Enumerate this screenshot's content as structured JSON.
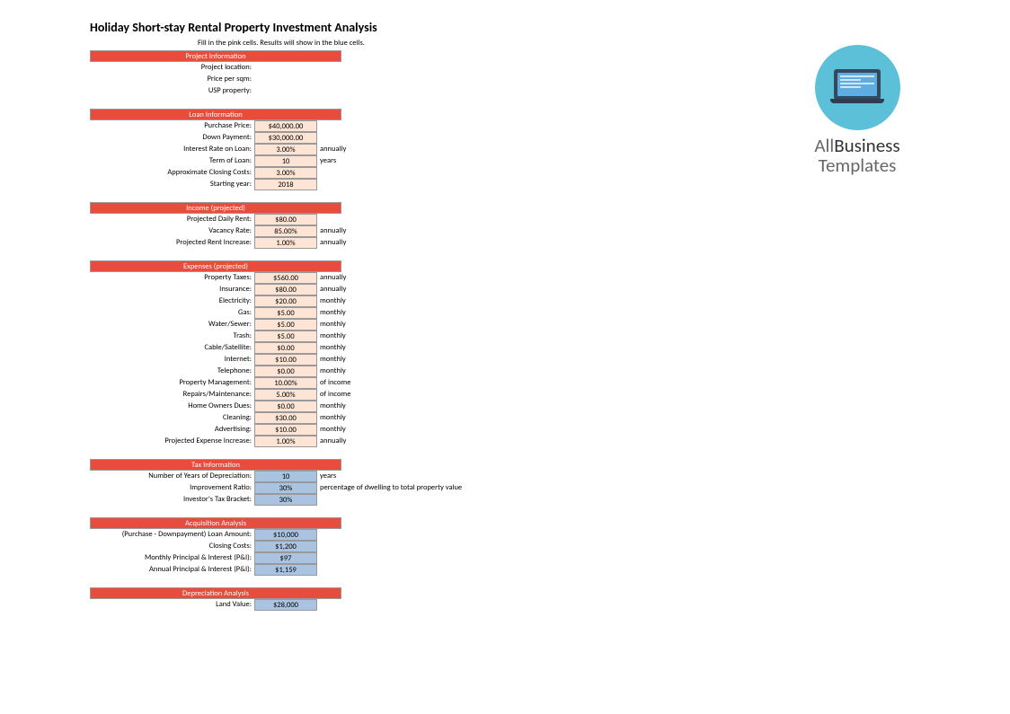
{
  "title": "Holiday Short-stay Rental Property Investment Analysis",
  "subtitle": "Fill in the pink cells. Results will show in the blue cells.",
  "logo": {
    "line1_a": "All",
    "line1_b": "Business",
    "line2": "Templates"
  },
  "colors": {
    "header_bg": "#e74c3c",
    "header_text": "#ffffff",
    "pink_cell": "#fde4d4",
    "blue_cell": "#a9c3e0",
    "border": "#999999"
  },
  "sections": [
    {
      "header": "Project Information",
      "rows": [
        {
          "label": "Project location:",
          "value": "",
          "cell": "none",
          "unit": ""
        },
        {
          "label": "Price per sqm:",
          "value": "",
          "cell": "none",
          "unit": ""
        },
        {
          "label": "USP property:",
          "value": "",
          "cell": "none",
          "unit": ""
        }
      ]
    },
    {
      "header": "Loan Information",
      "rows": [
        {
          "label": "Purchase Price:",
          "value": "$40,000.00",
          "cell": "pink",
          "unit": ""
        },
        {
          "label": "Down Payment:",
          "value": "$30,000.00",
          "cell": "pink",
          "unit": ""
        },
        {
          "label": "Interest Rate on Loan:",
          "value": "3.00%",
          "cell": "pink",
          "unit": "annually"
        },
        {
          "label": "Term of Loan:",
          "value": "10",
          "cell": "pink",
          "unit": "years"
        },
        {
          "label": "Approximate Closing Costs:",
          "value": "3.00%",
          "cell": "pink",
          "unit": ""
        },
        {
          "label": "Starting year:",
          "value": "2018",
          "cell": "pink",
          "unit": ""
        }
      ]
    },
    {
      "header": "Income (projected)",
      "rows": [
        {
          "label": "Projected Daily Rent:",
          "value": "$80.00",
          "cell": "pink",
          "unit": ""
        },
        {
          "label": "Vacancy Rate:",
          "value": "85.00%",
          "cell": "pink",
          "unit": "annually"
        },
        {
          "label": "Projected Rent Increase:",
          "value": "1.00%",
          "cell": "pink",
          "unit": "annually"
        }
      ]
    },
    {
      "header": "Expenses (projected)",
      "rows": [
        {
          "label": "Property Taxes:",
          "value": "$560.00",
          "cell": "pink",
          "unit": "annually"
        },
        {
          "label": "Insurance:",
          "value": "$80.00",
          "cell": "pink",
          "unit": "annually"
        },
        {
          "label": "Electricity:",
          "value": "$20.00",
          "cell": "pink",
          "unit": "monthly"
        },
        {
          "label": "Gas:",
          "value": "$5.00",
          "cell": "pink",
          "unit": "monthly"
        },
        {
          "label": "Water/Sewer:",
          "value": "$5.00",
          "cell": "pink",
          "unit": "monthly"
        },
        {
          "label": "Trash:",
          "value": "$5.00",
          "cell": "pink",
          "unit": "monthly"
        },
        {
          "label": "Cable/Satellite:",
          "value": "$0.00",
          "cell": "pink",
          "unit": "monthly"
        },
        {
          "label": "Internet:",
          "value": "$10.00",
          "cell": "pink",
          "unit": "monthly"
        },
        {
          "label": "Telephone:",
          "value": "$0.00",
          "cell": "pink",
          "unit": "monthly"
        },
        {
          "label": "Property Management:",
          "value": "10.00%",
          "cell": "pink",
          "unit": "of income"
        },
        {
          "label": "Repairs/Maintenance:",
          "value": "5.00%",
          "cell": "pink",
          "unit": "of income"
        },
        {
          "label": "Home Owners Dues:",
          "value": "$0.00",
          "cell": "pink",
          "unit": "monthly"
        },
        {
          "label": "Cleaning:",
          "value": "$30.00",
          "cell": "pink",
          "unit": "monthly"
        },
        {
          "label": "Advertising:",
          "value": "$10.00",
          "cell": "pink",
          "unit": "monthly"
        },
        {
          "label": "Projected Expense Increase:",
          "value": "1.00%",
          "cell": "pink",
          "unit": "annually"
        }
      ]
    },
    {
      "header": "Tax Information",
      "rows": [
        {
          "label": "Number of Years of Depreciation:",
          "value": "10",
          "cell": "blue",
          "unit": "years"
        },
        {
          "label": "Improvement Ratio:",
          "value": "30%",
          "cell": "blue",
          "unit": "percentage of dwelling to total property value"
        },
        {
          "label": "Investor's Tax Bracket:",
          "value": "30%",
          "cell": "blue",
          "unit": ""
        }
      ]
    },
    {
      "header": "Acquisition Analysis",
      "rows": [
        {
          "label": "(Purchase - Downpayment) Loan Amount:",
          "value": "$10,000",
          "cell": "blue",
          "unit": ""
        },
        {
          "label": "Closing Costs:",
          "value": "$1,200",
          "cell": "blue",
          "unit": ""
        },
        {
          "label": "Monthly Principal & Interest (P&I):",
          "value": "$97",
          "cell": "blue",
          "unit": ""
        },
        {
          "label": "Annual Principal & Interest (P&I):",
          "value": "$1,159",
          "cell": "blue",
          "unit": ""
        }
      ]
    },
    {
      "header": "Depreciation Analysis",
      "rows": [
        {
          "label": "Land Value:",
          "value": "$28,000",
          "cell": "blue",
          "unit": ""
        }
      ]
    }
  ]
}
